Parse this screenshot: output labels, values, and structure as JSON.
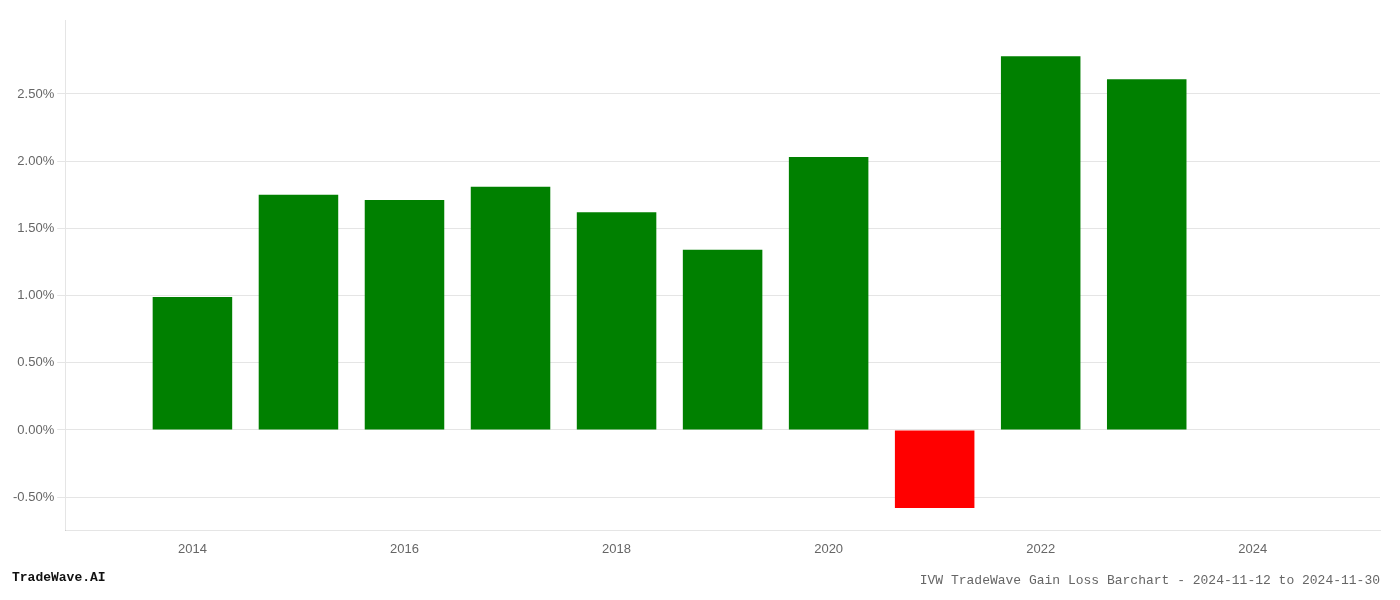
{
  "chart_data": {
    "type": "bar",
    "title": "IVW TradeWave Gain Loss Barchart - 2024-11-12 to 2024-11-30",
    "annotations": [
      "TradeWave.AI"
    ],
    "x": [
      2014,
      2015,
      2016,
      2017,
      2018,
      2019,
      2020,
      2021,
      2022,
      2023
    ],
    "values": [
      0.0099,
      0.0175,
      0.0171,
      0.0181,
      0.0162,
      0.0134,
      0.0203,
      -0.0058,
      0.0278,
      0.0261
    ],
    "colors": [
      "#008000",
      "#008000",
      "#008000",
      "#008000",
      "#008000",
      "#008000",
      "#008000",
      "#ff0000",
      "#008000",
      "#008000"
    ],
    "xlim": [
      2012.8,
      2025.2
    ],
    "xticks": [
      2014,
      2016,
      2018,
      2020,
      2022,
      2024
    ],
    "ylim": [
      -0.0075,
      0.0305
    ],
    "yticks": [
      {
        "value": -0.005,
        "label": "-0.50%"
      },
      {
        "value": 0.0,
        "label": "0.00%"
      },
      {
        "value": 0.005,
        "label": "0.50%"
      },
      {
        "value": 0.01,
        "label": "1.00%"
      },
      {
        "value": 0.015,
        "label": "1.50%"
      },
      {
        "value": 0.02,
        "label": "2.00%"
      },
      {
        "value": 0.025,
        "label": "2.50%"
      }
    ],
    "grid": true
  }
}
